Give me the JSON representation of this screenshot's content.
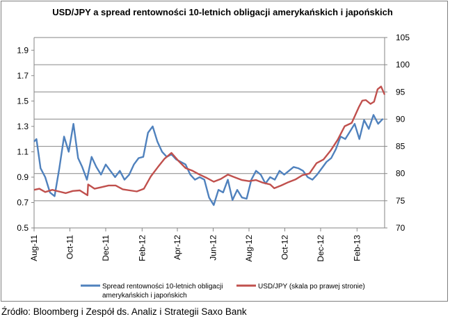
{
  "chart_data": {
    "type": "line",
    "title": "USD/JPY a spread rentowności 10-letnich obligacji amerykańskich i japońskich",
    "x_tick_labels": [
      "Aug-11",
      "Oct-11",
      "Dec-11",
      "Feb-12",
      "Apr-12",
      "Jun-12",
      "Aug-12",
      "Oct-12",
      "Dec-12",
      "Feb-13"
    ],
    "x_range": [
      "2011-08-01",
      "2013-03-20"
    ],
    "y_left": {
      "ylim": [
        0.5,
        2.0
      ],
      "ticks": [
        "0.5",
        "0.7",
        "0.9",
        "1.1",
        "1.3",
        "1.5",
        "1.7",
        "1.9"
      ]
    },
    "y_right": {
      "ylim": [
        70,
        105
      ],
      "ticks": [
        "70",
        "75",
        "80",
        "85",
        "90",
        "95",
        "100",
        "105"
      ]
    },
    "grid": "horizontal",
    "legend_position": "bottom",
    "series": [
      {
        "name": "Spread rentowności 10-letnich obligacji amerykańskich i japońskich",
        "name_line1": "Spread rentowności 10-letnich obligacji",
        "name_line2": "amerykańskich i japońskich",
        "axis": "left",
        "color": "#4f81bd",
        "x": [
          "2011-08-01",
          "2011-08-05",
          "2011-08-12",
          "2011-08-20",
          "2011-08-28",
          "2011-09-05",
          "2011-09-13",
          "2011-09-21",
          "2011-09-29",
          "2011-10-07",
          "2011-10-15",
          "2011-10-22",
          "2011-10-30",
          "2011-11-07",
          "2011-11-15",
          "2011-11-23",
          "2011-12-01",
          "2011-12-09",
          "2011-12-17",
          "2011-12-25",
          "2012-01-02",
          "2012-01-10",
          "2012-01-18",
          "2012-01-26",
          "2012-02-03",
          "2012-02-11",
          "2012-02-19",
          "2012-02-27",
          "2012-03-06",
          "2012-03-14",
          "2012-03-22",
          "2012-03-30",
          "2012-04-07",
          "2012-04-15",
          "2012-04-23",
          "2012-05-01",
          "2012-05-09",
          "2012-05-17",
          "2012-05-25",
          "2012-06-02",
          "2012-06-10",
          "2012-06-18",
          "2012-06-26",
          "2012-07-04",
          "2012-07-12",
          "2012-07-20",
          "2012-07-28",
          "2012-08-05",
          "2012-08-13",
          "2012-08-21",
          "2012-08-29",
          "2012-09-06",
          "2012-09-14",
          "2012-09-22",
          "2012-09-30",
          "2012-10-08",
          "2012-10-16",
          "2012-10-24",
          "2012-11-01",
          "2012-11-09",
          "2012-11-17",
          "2012-11-25",
          "2012-12-03",
          "2012-12-11",
          "2012-12-19",
          "2012-12-27",
          "2013-01-04",
          "2013-01-12",
          "2013-01-20",
          "2013-01-28",
          "2013-02-05",
          "2013-02-13",
          "2013-02-21",
          "2013-03-01",
          "2013-03-09",
          "2013-03-17"
        ],
        "values": [
          1.18,
          1.2,
          0.97,
          0.9,
          0.78,
          0.75,
          0.97,
          1.22,
          1.1,
          1.32,
          1.05,
          0.98,
          0.88,
          1.06,
          0.98,
          0.92,
          1.0,
          0.95,
          0.9,
          0.95,
          0.88,
          0.92,
          1.0,
          1.05,
          1.06,
          1.25,
          1.3,
          1.18,
          1.1,
          1.06,
          1.08,
          1.04,
          1.02,
          1.0,
          0.92,
          0.88,
          0.9,
          0.88,
          0.74,
          0.68,
          0.8,
          0.78,
          0.88,
          0.72,
          0.8,
          0.74,
          0.73,
          0.88,
          0.95,
          0.92,
          0.85,
          0.9,
          0.88,
          0.95,
          0.92,
          0.95,
          0.98,
          0.97,
          0.95,
          0.9,
          0.88,
          0.92,
          0.97,
          1.02,
          1.05,
          1.12,
          1.22,
          1.2,
          1.26,
          1.32,
          1.2,
          1.35,
          1.28,
          1.39,
          1.32,
          1.36
        ]
      },
      {
        "name": "USD/JPY (skala po prawej stronie)",
        "axis": "right",
        "color": "#c0504d",
        "x": [
          "2011-08-01",
          "2011-08-10",
          "2011-08-20",
          "2011-09-01",
          "2011-09-12",
          "2011-09-24",
          "2011-10-06",
          "2011-10-18",
          "2011-10-31",
          "2011-11-01",
          "2011-11-12",
          "2011-11-24",
          "2011-12-06",
          "2011-12-18",
          "2011-12-30",
          "2012-01-11",
          "2012-01-23",
          "2012-02-04",
          "2012-02-16",
          "2012-02-28",
          "2012-03-10",
          "2012-03-22",
          "2012-04-03",
          "2012-04-15",
          "2012-04-27",
          "2012-05-09",
          "2012-05-21",
          "2012-06-02",
          "2012-06-14",
          "2012-06-26",
          "2012-07-08",
          "2012-07-20",
          "2012-08-01",
          "2012-08-13",
          "2012-08-25",
          "2012-09-06",
          "2012-09-13",
          "2012-09-25",
          "2012-10-07",
          "2012-10-19",
          "2012-10-31",
          "2012-11-12",
          "2012-11-24",
          "2012-12-06",
          "2012-12-18",
          "2012-12-30",
          "2013-01-11",
          "2013-01-23",
          "2013-02-04",
          "2013-02-10",
          "2013-02-16",
          "2013-02-24",
          "2013-03-02",
          "2013-03-08",
          "2013-03-14",
          "2013-03-20"
        ],
        "values": [
          77.0,
          77.2,
          76.6,
          77.0,
          76.7,
          76.4,
          76.8,
          76.9,
          76.0,
          78.0,
          77.2,
          77.5,
          77.8,
          77.8,
          77.1,
          76.9,
          76.7,
          77.2,
          79.5,
          81.2,
          82.7,
          83.8,
          82.3,
          81.0,
          80.5,
          79.8,
          79.2,
          78.5,
          79.0,
          79.8,
          79.3,
          78.8,
          78.6,
          78.8,
          78.3,
          78.0,
          77.3,
          77.8,
          78.4,
          78.9,
          79.7,
          80.0,
          81.9,
          82.6,
          84.2,
          86.2,
          88.7,
          89.3,
          92.2,
          93.4,
          93.5,
          92.8,
          93.2,
          95.5,
          96.0,
          94.5
        ]
      }
    ]
  },
  "source_text": "Źródło: Bloomberg i Zespół ds. Analiz i Strategii Saxo Bank"
}
